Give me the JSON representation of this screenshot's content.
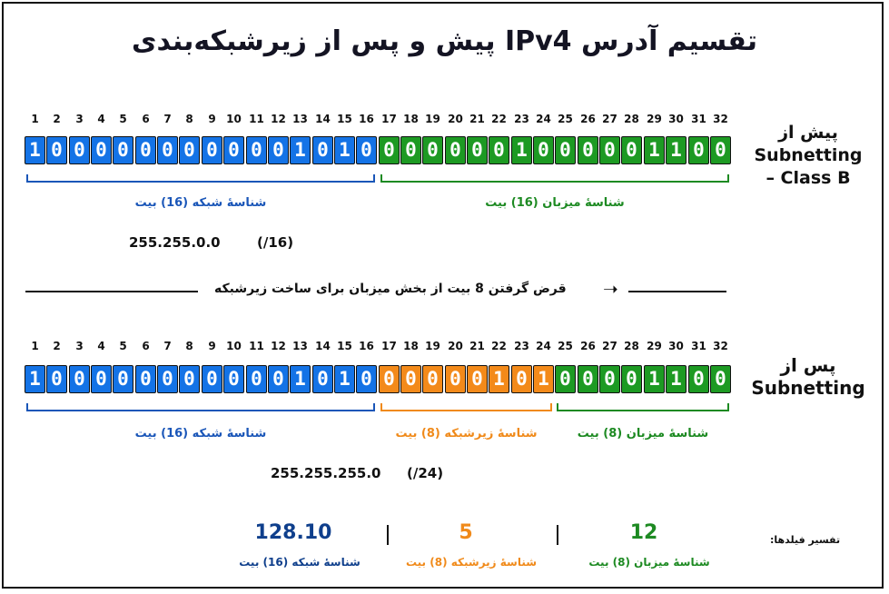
{
  "title": "تقسیم آدرس IPv4 پیش و پس از زیرشبکه‌بندی",
  "bit_positions": [
    1,
    2,
    3,
    4,
    5,
    6,
    7,
    8,
    9,
    10,
    11,
    12,
    13,
    14,
    15,
    16,
    17,
    18,
    19,
    20,
    21,
    22,
    23,
    24,
    25,
    26,
    27,
    28,
    29,
    30,
    31,
    32
  ],
  "before": {
    "side_label_line1": "پیش از",
    "side_label_line2": "Subnetting",
    "side_label_line3": "– Class B",
    "bits": [
      "1",
      "0",
      "0",
      "0",
      "0",
      "0",
      "0",
      "0",
      "0",
      "0",
      "0",
      "0",
      "1",
      "0",
      "1",
      "0",
      "0",
      "0",
      "0",
      "0",
      "0",
      "0",
      "1",
      "0",
      "0",
      "0",
      "0",
      "0",
      "1",
      "1",
      "0",
      "0"
    ],
    "segments": [
      {
        "color": "blue",
        "label": "شناسهٔ شبکه (16) بیت",
        "start": 1,
        "end": 16
      },
      {
        "color": "green",
        "label": "شناسهٔ میزبان (16) بیت",
        "start": 17,
        "end": 32
      }
    ],
    "mask": "255.255.0.0",
    "prefix": "(/16)"
  },
  "borrow_text": "قرض گرفتن 8 بیت از بخش میزبان برای ساخت زیرشبکه",
  "after": {
    "side_label_line1": "پس از",
    "side_label_line2": "Subnetting",
    "bits": [
      "1",
      "0",
      "0",
      "0",
      "0",
      "0",
      "0",
      "0",
      "0",
      "0",
      "0",
      "0",
      "1",
      "0",
      "1",
      "0",
      "0",
      "0",
      "0",
      "0",
      "0",
      "1",
      "0",
      "1",
      "0",
      "0",
      "0",
      "0",
      "1",
      "1",
      "0",
      "0"
    ],
    "segments": [
      {
        "color": "blue",
        "label": "شناسهٔ شبکه (16) بیت",
        "start": 1,
        "end": 16
      },
      {
        "color": "orange",
        "label": "شناسهٔ زیرشبکه (8) بیت",
        "start": 17,
        "end": 24
      },
      {
        "color": "green",
        "label": "شناسهٔ میزبان (8) بیت",
        "start": 25,
        "end": 32
      }
    ],
    "mask": "255.255.255.0",
    "prefix": "(/24)"
  },
  "summary": {
    "legend": "تفسیر فیلدها:",
    "items": [
      {
        "value": "128.10",
        "label": "شناسهٔ شبکه (16) بیت",
        "color": "#0f3f8c"
      },
      {
        "value": "5",
        "label": "شناسهٔ زیرشبکه (8) بیت",
        "color": "#f08a1a"
      },
      {
        "value": "12",
        "label": "شناسهٔ میزبان (8) بیت",
        "color": "#1d8a22"
      }
    ],
    "separator": "|"
  },
  "colors": {
    "blue": "#1473e6",
    "green": "#1d9a23",
    "orange": "#f38a1a",
    "blue_text": "#1a56b8",
    "green_text": "#1d8a22",
    "orange_text": "#f08a1a"
  }
}
